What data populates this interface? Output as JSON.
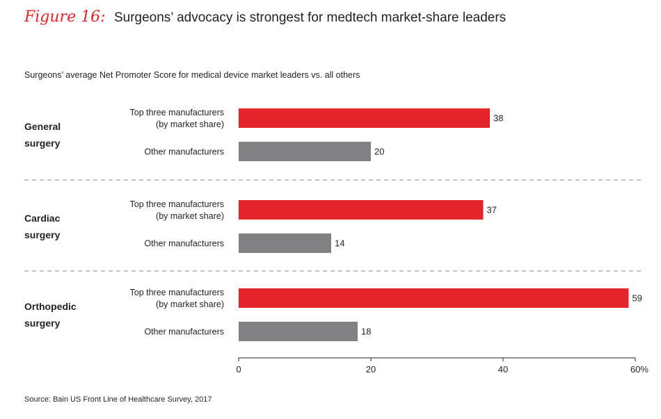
{
  "figure_label": "Figure 16:",
  "title": "Surgeons’ advocacy is strongest for medtech market-share leaders",
  "subtitle": "Surgeons’ average Net Promoter Score for medical device market leaders vs. all others",
  "source": "Source: Bain US Front Line of Healthcare Survey, 2017",
  "colors": {
    "leaders": "#e3242b",
    "others": "#818083",
    "text": "#231f20",
    "divider": "#8a8a8a"
  },
  "chart_data": {
    "type": "bar",
    "orientation": "horizontal",
    "title": "Surgeons’ advocacy is strongest for medtech market-share leaders",
    "xlabel": "",
    "ylabel": "",
    "xlim": [
      0,
      60
    ],
    "x_ticks": [
      "0",
      "20",
      "40",
      "60%"
    ],
    "x_tick_values": [
      0,
      20,
      40,
      60
    ],
    "groups": [
      {
        "label_lines": [
          "General",
          "surgery"
        ],
        "bars": [
          {
            "label_lines": [
              "Top three manufacturers",
              "(by market share)"
            ],
            "series": "leaders",
            "value": 38
          },
          {
            "label_lines": [
              "Other manufacturers"
            ],
            "series": "others",
            "value": 20
          }
        ]
      },
      {
        "label_lines": [
          "Cardiac",
          "surgery"
        ],
        "bars": [
          {
            "label_lines": [
              "Top three manufacturers",
              "(by market share)"
            ],
            "series": "leaders",
            "value": 37
          },
          {
            "label_lines": [
              "Other manufacturers"
            ],
            "series": "others",
            "value": 14
          }
        ]
      },
      {
        "label_lines": [
          "Orthopedic",
          "surgery"
        ],
        "bars": [
          {
            "label_lines": [
              "Top three manufacturers",
              "(by market share)"
            ],
            "series": "leaders",
            "value": 59
          },
          {
            "label_lines": [
              "Other manufacturers"
            ],
            "series": "others",
            "value": 18
          }
        ]
      }
    ]
  }
}
